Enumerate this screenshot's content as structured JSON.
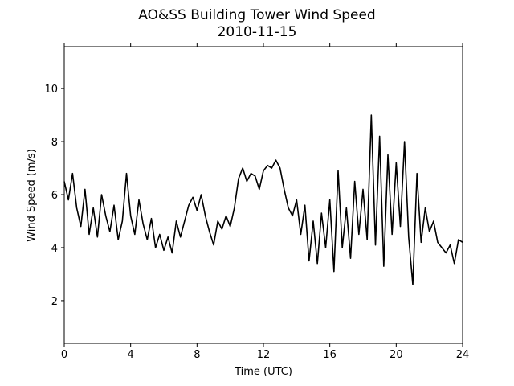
{
  "chart_data": {
    "type": "line",
    "title": "AO&SS Building Tower Wind Speed",
    "subtitle": "2010-11-15",
    "x_label": "Time (UTC)",
    "y_label": "Wind Speed (m/s)",
    "color": "#000000",
    "x": [
      0,
      0.25,
      0.5,
      0.75,
      1,
      1.25,
      1.5,
      1.75,
      2,
      2.25,
      2.5,
      2.75,
      3,
      3.25,
      3.5,
      3.75,
      4,
      4.25,
      4.5,
      4.75,
      5,
      5.25,
      5.5,
      5.75,
      6,
      6.25,
      6.5,
      6.75,
      7,
      7.25,
      7.5,
      7.75,
      8,
      8.25,
      8.5,
      8.75,
      9,
      9.25,
      9.5,
      9.75,
      10,
      10.25,
      10.5,
      10.75,
      11,
      11.25,
      11.5,
      11.75,
      12,
      12.25,
      12.5,
      12.75,
      13,
      13.25,
      13.5,
      13.75,
      14,
      14.25,
      14.5,
      14.75,
      15,
      15.25,
      15.5,
      15.75,
      16,
      16.25,
      16.5,
      16.75,
      17,
      17.25,
      17.5,
      17.75,
      18,
      18.25,
      18.5,
      18.75,
      19,
      19.25,
      19.5,
      19.75,
      20,
      20.25,
      20.5,
      20.75,
      21,
      21.25,
      21.5,
      21.75,
      22,
      22.25,
      22.5,
      22.75,
      23,
      23.25,
      23.5,
      23.75,
      24
    ],
    "values": [
      6.5,
      5.8,
      6.8,
      5.5,
      4.8,
      6.2,
      4.5,
      5.5,
      4.4,
      6.0,
      5.2,
      4.6,
      5.6,
      4.3,
      5.0,
      6.8,
      5.2,
      4.5,
      5.8,
      4.9,
      4.3,
      5.1,
      4.0,
      4.5,
      3.9,
      4.4,
      3.8,
      5.0,
      4.4,
      5.0,
      5.6,
      5.9,
      5.4,
      6.0,
      5.2,
      4.6,
      4.1,
      5.0,
      4.7,
      5.2,
      4.8,
      5.5,
      6.6,
      7.0,
      6.5,
      6.8,
      6.7,
      6.2,
      6.9,
      7.1,
      7.0,
      7.3,
      7.0,
      6.2,
      5.5,
      5.2,
      5.8,
      4.5,
      5.6,
      3.5,
      5.0,
      3.4,
      5.3,
      4.0,
      5.8,
      3.1,
      6.9,
      4.0,
      5.5,
      3.6,
      6.5,
      4.5,
      6.2,
      4.3,
      9.0,
      4.1,
      8.2,
      3.3,
      7.5,
      4.5,
      7.2,
      4.8,
      8.0,
      4.4,
      2.6,
      6.8,
      4.2,
      5.5,
      4.6,
      5.0,
      4.2,
      4.0,
      3.8,
      4.1,
      3.4,
      4.3,
      4.2
    ],
    "xlim": [
      0,
      24
    ],
    "xticks": [
      0,
      4,
      8,
      12,
      16,
      20,
      24
    ],
    "ylim": [
      0.39,
      11.58
    ],
    "yticks": [
      2,
      4,
      6,
      8,
      10
    ]
  }
}
